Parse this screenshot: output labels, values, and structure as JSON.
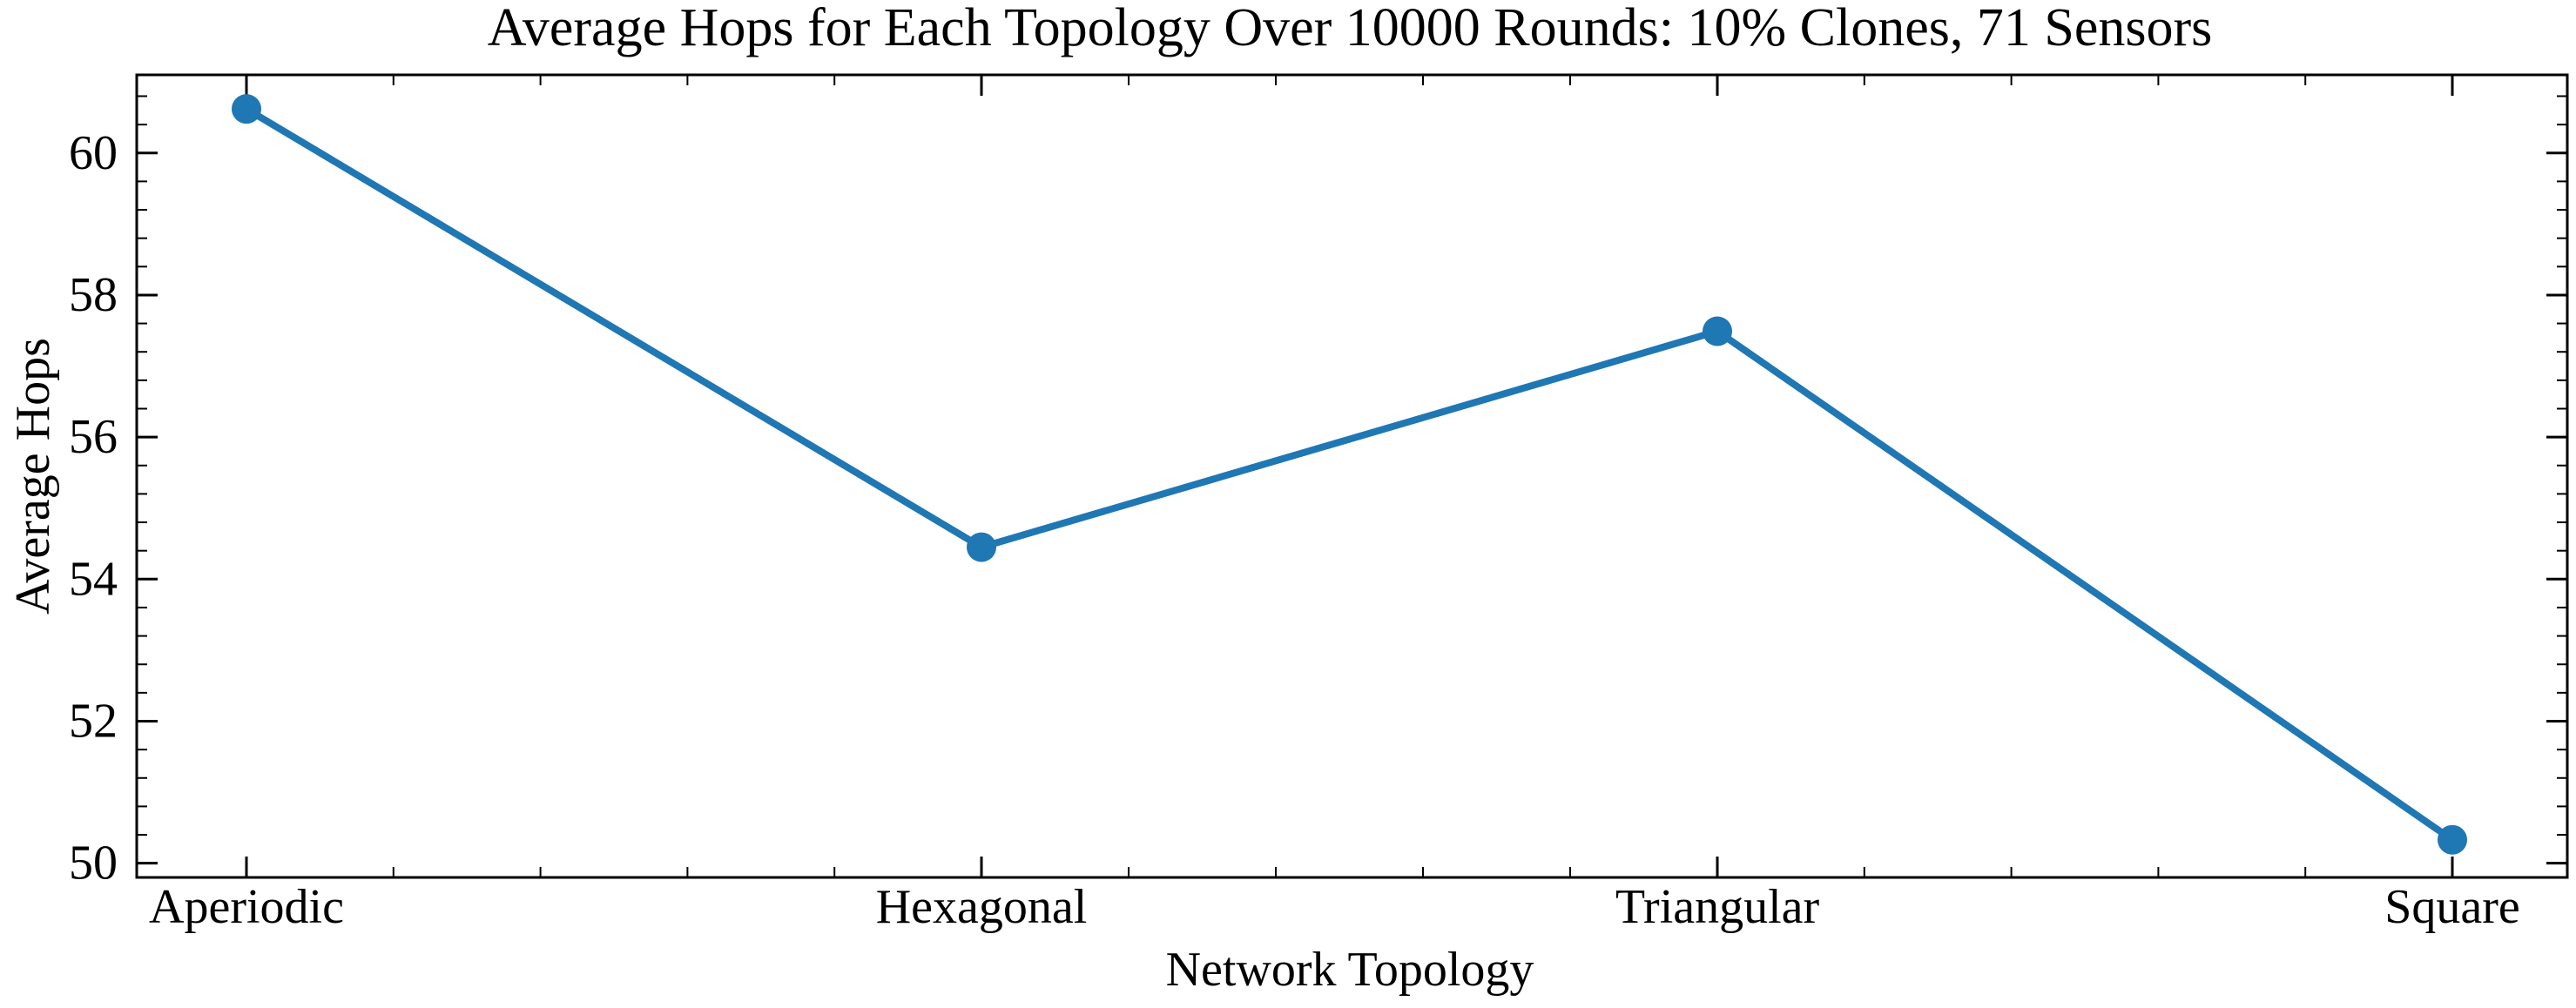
{
  "chart_data": {
    "type": "line",
    "title": "Average Hops for Each Topology Over 10000 Rounds: 10% Clones, 71 Sensors",
    "xlabel": "Network Topology",
    "ylabel": "Average Hops",
    "categories": [
      "Aperiodic",
      "Hexagonal",
      "Triangular",
      "Square"
    ],
    "series": [
      {
        "values": [
          60.62,
          54.45,
          57.49,
          50.33
        ],
        "color": "#1f77b4",
        "marker": "circle"
      }
    ],
    "ylim": [
      49.8,
      61.1
    ],
    "yticks": [
      50,
      52,
      54,
      56,
      58,
      60
    ],
    "grid": false,
    "legend": "none"
  }
}
